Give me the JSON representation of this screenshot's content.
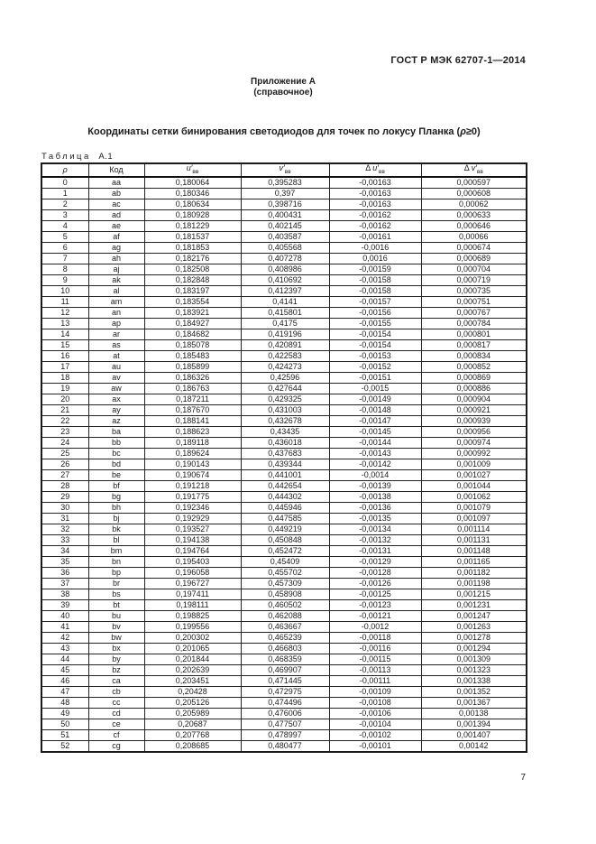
{
  "page": {
    "doc_header": "ГОСТ Р МЭК 62707-1—2014",
    "annex_title": "Приложение А",
    "annex_subtitle": "(справочное)",
    "title_pre": "Координаты сетки бинирования светодиодов для точек по локусу Планка (",
    "title_rho": "ρ",
    "title_post": "≥0)",
    "table_label_word": "Таблица",
    "table_label_num": "А.1",
    "page_number": "7"
  },
  "table": {
    "col_keys": [
      "rho",
      "code",
      "u",
      "v",
      "du",
      "dv"
    ],
    "headers": [
      {
        "pre": "",
        "sym": "ρ",
        "sub": "",
        "italic": true
      },
      {
        "pre": "",
        "sym": "Код",
        "sub": "",
        "italic": false
      },
      {
        "pre": "",
        "sym": "u′",
        "sub": "вв",
        "italic": true
      },
      {
        "pre": "",
        "sym": "v′",
        "sub": "вв",
        "italic": true
      },
      {
        "pre": "Δ ",
        "sym": "u′",
        "sub": "вв",
        "italic": true
      },
      {
        "pre": "Δ ",
        "sym": "v′",
        "sub": "вв",
        "italic": true
      }
    ],
    "rows": [
      [
        "0",
        "aa",
        "0,180064",
        "0,395283",
        "-0,00163",
        "0,000597"
      ],
      [
        "1",
        "ab",
        "0,180346",
        "0,397",
        "-0,00163",
        "0,000608"
      ],
      [
        "2",
        "ac",
        "0,180634",
        "0,398716",
        "-0,00163",
        "0,00062"
      ],
      [
        "3",
        "ad",
        "0,180928",
        "0,400431",
        "-0,00162",
        "0,000633"
      ],
      [
        "4",
        "ae",
        "0,181229",
        "0,402145",
        "-0,00162",
        "0,000646"
      ],
      [
        "5",
        "af",
        "0,181537",
        "0,403587",
        "-0,00161",
        "0,00066"
      ],
      [
        "6",
        "ag",
        "0,181853",
        "0,405568",
        "-0,0016",
        "0,000674"
      ],
      [
        "7",
        "ah",
        "0,182176",
        "0,407278",
        "0,0016",
        "0,000689"
      ],
      [
        "8",
        "aj",
        "0,182508",
        "0,408986",
        "-0,00159",
        "0,000704"
      ],
      [
        "9",
        "ak",
        "0,182848",
        "0,410692",
        "-0,00158",
        "0,000719"
      ],
      [
        "10",
        "al",
        "0,183197",
        "0,412397",
        "-0,00158",
        "0,000735"
      ],
      [
        "11",
        "am",
        "0,183554",
        "0,4141",
        "-0,00157",
        "0,000751"
      ],
      [
        "12",
        "an",
        "0,183921",
        "0,415801",
        "-0,00156",
        "0,000767"
      ],
      [
        "13",
        "ap",
        "0,184927",
        "0,4175",
        "-0,00155",
        "0,000784"
      ],
      [
        "14",
        "ar",
        "0,184682",
        "0,419196",
        "-0,00154",
        "0,000801"
      ],
      [
        "15",
        "as",
        "0,185078",
        "0,420891",
        "-0,00154",
        "0,000817"
      ],
      [
        "16",
        "at",
        "0,185483",
        "0,422583",
        "-0,00153",
        "0,000834"
      ],
      [
        "17",
        "au",
        "0,185899",
        "0,424273",
        "-0,00152",
        "0,000852"
      ],
      [
        "18",
        "av",
        "0,186326",
        "0,42596",
        "-0,00151",
        "0,000869"
      ],
      [
        "19",
        "aw",
        "0,186763",
        "0,427644",
        "-0,0015",
        "0,000886"
      ],
      [
        "20",
        "ax",
        "0,187211",
        "0,429325",
        "-0,00149",
        "0,000904"
      ],
      [
        "21",
        "ay",
        "0,187670",
        "0,431003",
        "-0,00148",
        "0,000921"
      ],
      [
        "22",
        "az",
        "0,188141",
        "0,432678",
        "-0,00147",
        "0,000939"
      ],
      [
        "23",
        "ba",
        "0,188623",
        "0,43435",
        "-0,00145",
        "0,000956"
      ],
      [
        "24",
        "bb",
        "0,189118",
        "0,436018",
        "-0,00144",
        "0,000974"
      ],
      [
        "25",
        "bc",
        "0,189624",
        "0,437683",
        "-0,00143",
        "0,000992"
      ],
      [
        "26",
        "bd",
        "0,190143",
        "0,439344",
        "-0,00142",
        "0,001009"
      ],
      [
        "27",
        "be",
        "0,190674",
        "0,441001",
        "-0,0014",
        "0,001027"
      ],
      [
        "28",
        "bf",
        "0,191218",
        "0,442654",
        "-0,00139",
        "0,001044"
      ],
      [
        "29",
        "bg",
        "0,191775",
        "0,444302",
        "-0,00138",
        "0,001062"
      ],
      [
        "30",
        "bh",
        "0,192346",
        "0,445946",
        "-0,00136",
        "0,001079"
      ],
      [
        "31",
        "bj",
        "0,192929",
        "0,447585",
        "-0,00135",
        "0,001097"
      ],
      [
        "32",
        "bk",
        "0,193527",
        "0,449219",
        "-0,00134",
        "0,001114"
      ],
      [
        "33",
        "bl",
        "0,194138",
        "0,450848",
        "-0,00132",
        "0,001131"
      ],
      [
        "34",
        "bm",
        "0,194764",
        "0,452472",
        "-0,00131",
        "0,001148"
      ],
      [
        "35",
        "bn",
        "0,195403",
        "0,45409",
        "-0,00129",
        "0,001165"
      ],
      [
        "36",
        "bp",
        "0,196058",
        "0,455702",
        "-0,00128",
        "0,001182"
      ],
      [
        "37",
        "br",
        "0,196727",
        "0,457309",
        "-0,00126",
        "0,001198"
      ],
      [
        "38",
        "bs",
        "0,197411",
        "0,458908",
        "-0,00125",
        "0,001215"
      ],
      [
        "39",
        "bt",
        "0,198111",
        "0,460502",
        "-0,00123",
        "0,001231"
      ],
      [
        "40",
        "bu",
        "0,198825",
        "0,462088",
        "-0,00121",
        "0,001247"
      ],
      [
        "41",
        "bv",
        "0,199556",
        "0,463667",
        "-0,0012",
        "0,001263"
      ],
      [
        "42",
        "bw",
        "0,200302",
        "0,465239",
        "-0,00118",
        "0,001278"
      ],
      [
        "43",
        "bx",
        "0,201065",
        "0,466803",
        "-0,00116",
        "0,001294"
      ],
      [
        "44",
        "by",
        "0,201844",
        "0,468359",
        "-0,00115",
        "0,001309"
      ],
      [
        "45",
        "bz",
        "0,202639",
        "0,469907",
        "-0,00113",
        "0,001323"
      ],
      [
        "46",
        "ca",
        "0,203451",
        "0,471445",
        "-0,00111",
        "0,001338"
      ],
      [
        "47",
        "cb",
        "0,20428",
        "0,472975",
        "-0,00109",
        "0,001352"
      ],
      [
        "48",
        "cc",
        "0,205126",
        "0,474496",
        "-0,00108",
        "0,001367"
      ],
      [
        "49",
        "cd",
        "0,205989",
        "0,476006",
        "-0,00106",
        "0,00138"
      ],
      [
        "50",
        "ce",
        "0,20687",
        "0,477507",
        "-0,00104",
        "0,001394"
      ],
      [
        "51",
        "cf",
        "0,207768",
        "0,478997",
        "-0,00102",
        "0,001407"
      ],
      [
        "52",
        "cg",
        "0,208685",
        "0,480477",
        "-0,00101",
        "0,00142"
      ]
    ]
  }
}
